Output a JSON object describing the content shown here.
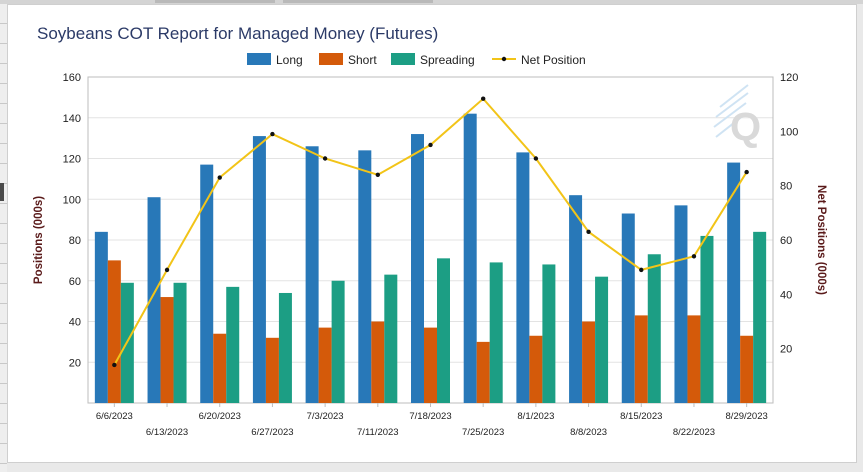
{
  "chart_data": {
    "type": "bar",
    "title": "Soybeans COT Report for Managed Money (Futures)",
    "categories": [
      "6/6/2023",
      "6/13/2023",
      "6/20/2023",
      "6/27/2023",
      "7/3/2023",
      "7/11/2023",
      "7/18/2023",
      "7/25/2023",
      "8/1/2023",
      "8/8/2023",
      "8/15/2023",
      "8/22/2023",
      "8/29/2023"
    ],
    "series": [
      {
        "name": "Long",
        "type": "bar",
        "axis": "left",
        "color": "#2878b8",
        "values": [
          84,
          101,
          117,
          131,
          126,
          124,
          132,
          142,
          123,
          102,
          93,
          97,
          118
        ]
      },
      {
        "name": "Short",
        "type": "bar",
        "axis": "left",
        "color": "#d45a0a",
        "values": [
          70,
          52,
          34,
          32,
          37,
          40,
          37,
          30,
          33,
          40,
          43,
          43,
          33
        ]
      },
      {
        "name": "Spreading",
        "type": "bar",
        "axis": "left",
        "color": "#1c9e84",
        "values": [
          59,
          59,
          57,
          54,
          60,
          63,
          71,
          69,
          68,
          62,
          73,
          82,
          84
        ]
      },
      {
        "name": "Net Position",
        "type": "line",
        "axis": "right",
        "color": "#f2c418",
        "values": [
          14,
          49,
          83,
          99,
          90,
          84,
          95,
          112,
          90,
          63,
          49,
          54,
          85
        ]
      }
    ],
    "ylabel": "Positions (000s)",
    "y2label": "Net Positions (000s)",
    "ylim": [
      0,
      160
    ],
    "y2lim": [
      0,
      120
    ],
    "yticks": [
      20,
      40,
      60,
      80,
      100,
      120,
      140,
      160
    ],
    "y2ticks": [
      20,
      40,
      60,
      80,
      100,
      120
    ],
    "grid": true,
    "legend": "top-center",
    "watermark": "Q"
  }
}
